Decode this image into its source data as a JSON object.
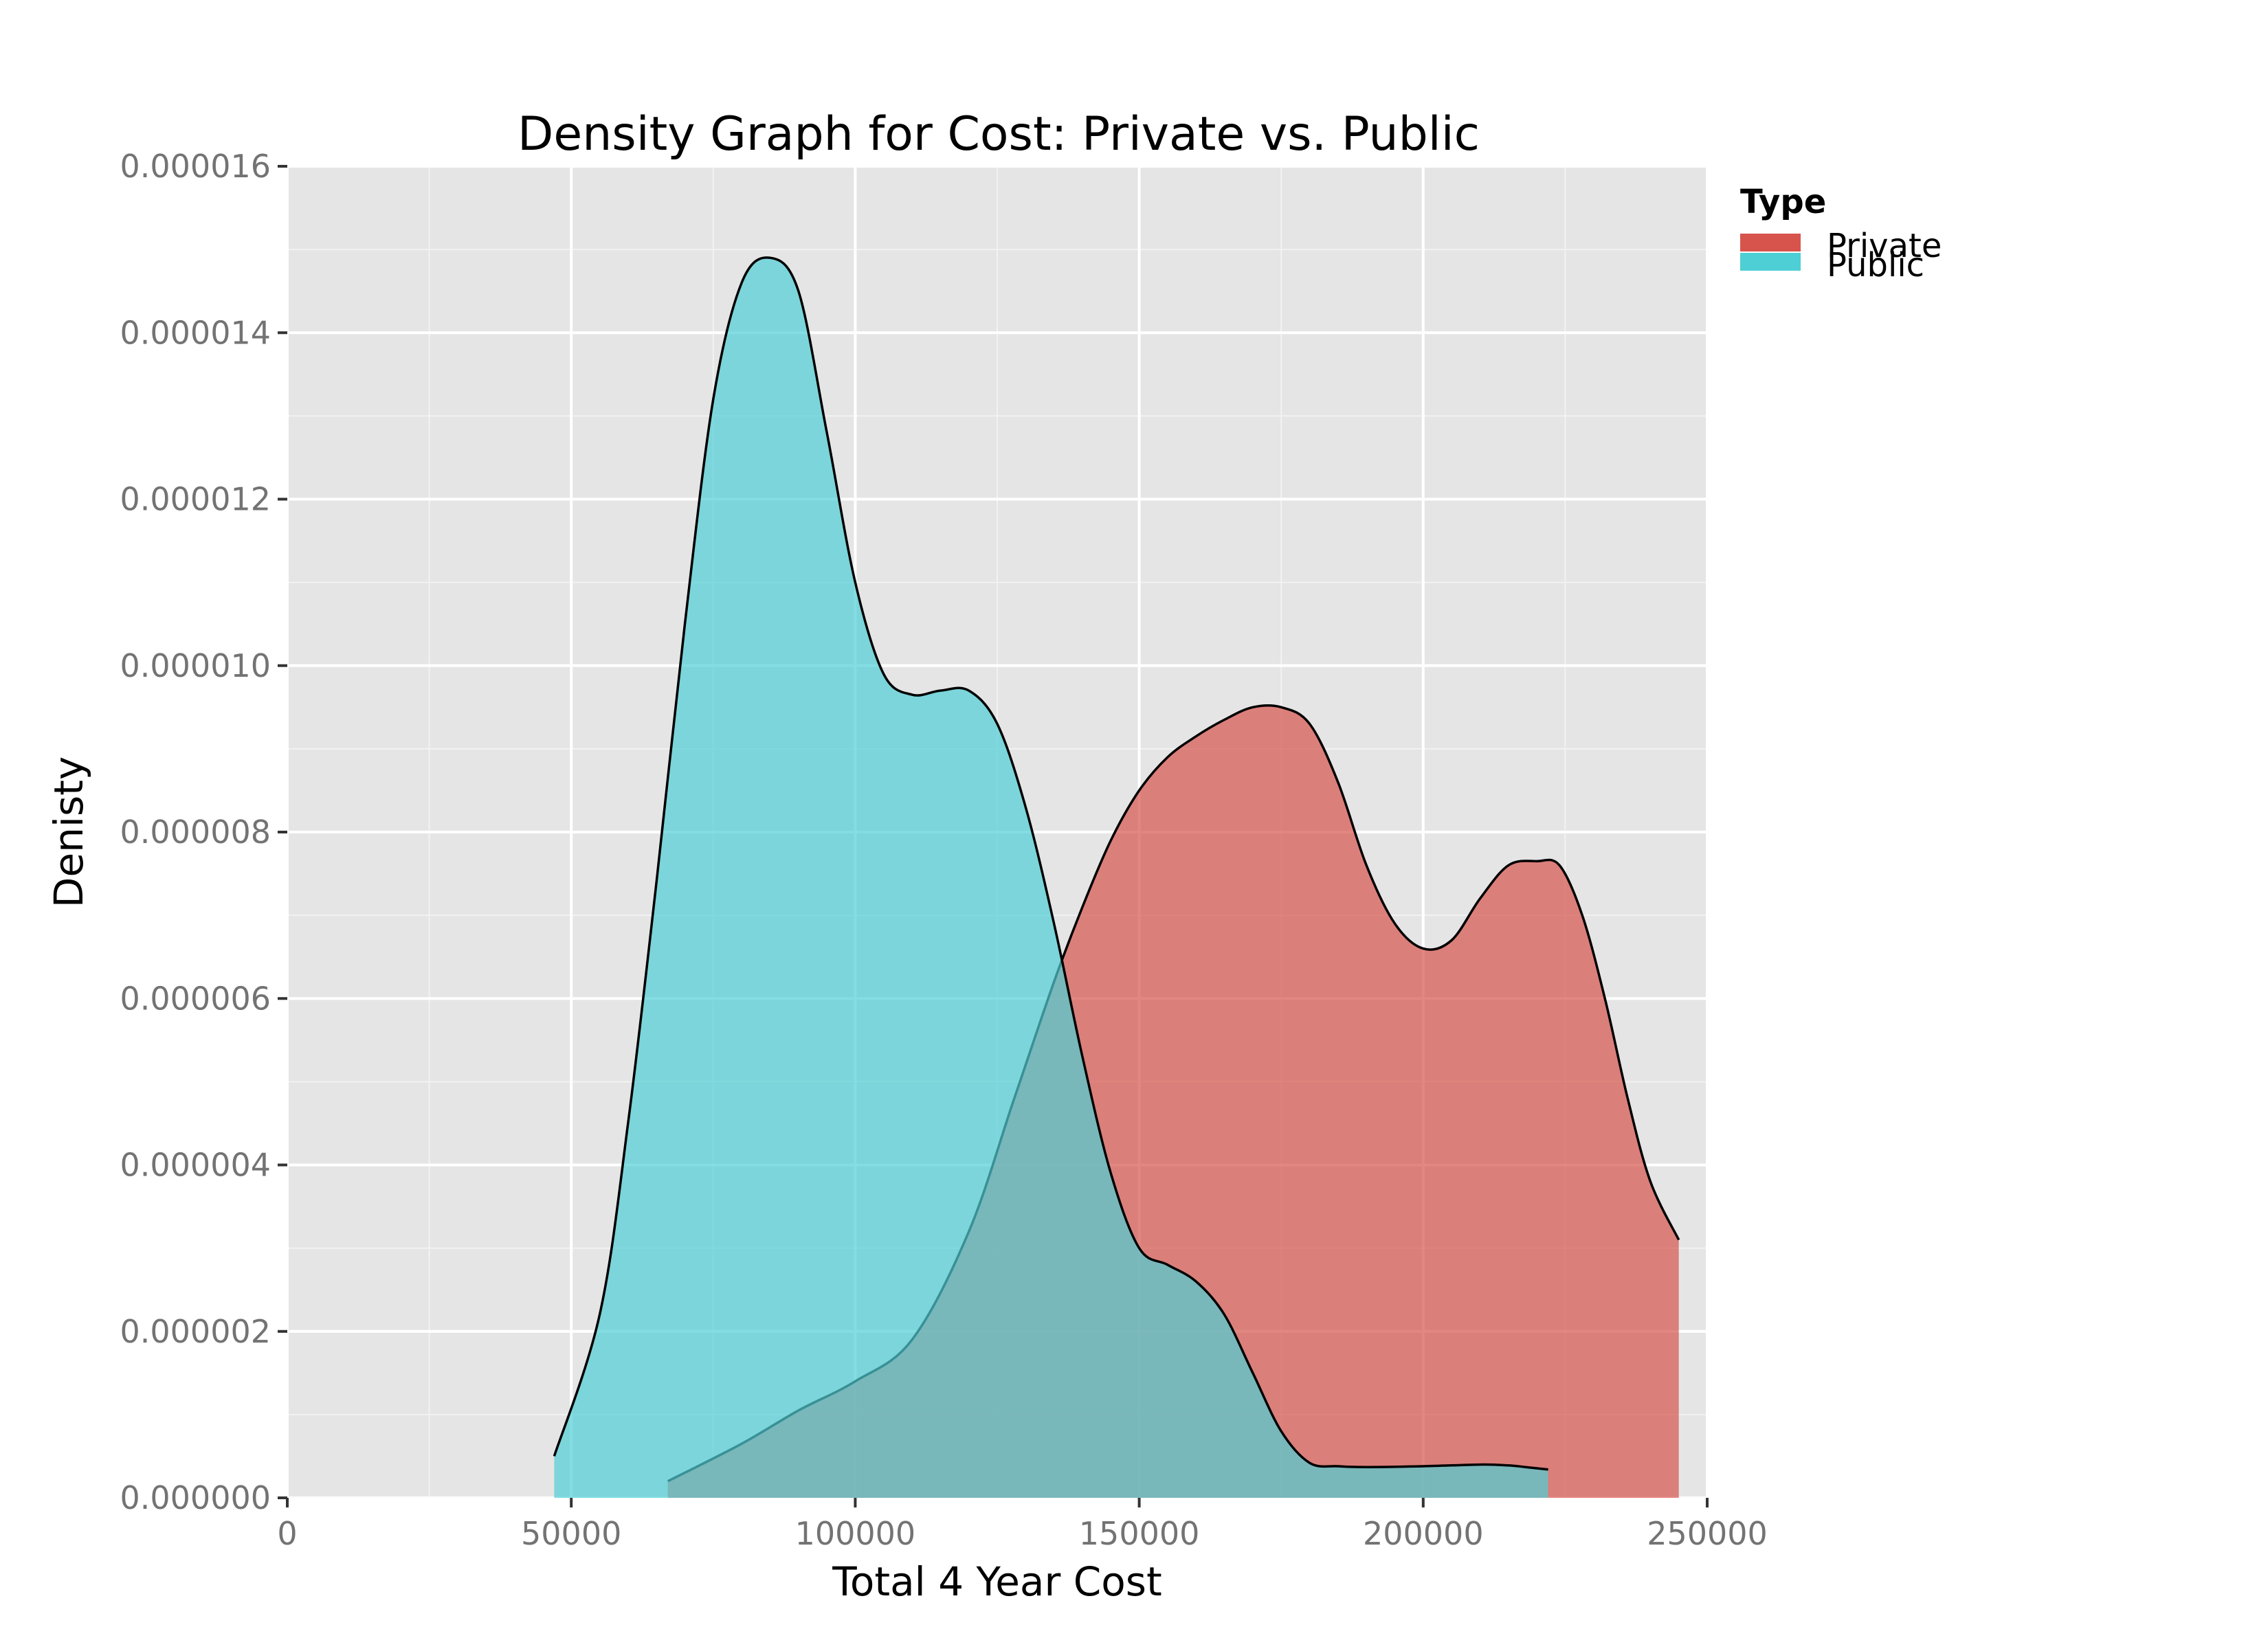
{
  "chart_data": {
    "type": "area",
    "subtype": "density",
    "title": "Density Graph for Cost: Private vs. Public",
    "xlabel": "Total 4 Year Cost",
    "ylabel": "Denisty",
    "xlim": [
      0,
      250000
    ],
    "ylim": [
      0,
      1.6e-05
    ],
    "x_ticks": [
      0,
      50000,
      100000,
      150000,
      200000,
      250000
    ],
    "x_tick_labels": [
      "0",
      "50000",
      "100000",
      "150000",
      "200000",
      "250000"
    ],
    "y_ticks": [
      0,
      2e-06,
      4e-06,
      6e-06,
      8e-06,
      1e-05,
      1.2e-05,
      1.4e-05,
      1.6e-05
    ],
    "y_tick_labels": [
      "0.000000",
      "0.000002",
      "0.000004",
      "0.000006",
      "0.000008",
      "0.000010",
      "0.000012",
      "0.000014",
      "0.000016"
    ],
    "grid": true,
    "legend": {
      "title": "Type",
      "position": "right"
    },
    "series": [
      {
        "name": "Private",
        "color": "#D7544D",
        "x": [
          67000,
          80000,
          90000,
          100000,
          110000,
          120000,
          128000,
          135000,
          140000,
          145000,
          150000,
          155000,
          160000,
          165000,
          170000,
          175000,
          180000,
          185000,
          190000,
          195000,
          200000,
          205000,
          210000,
          215000,
          220000,
          224000,
          228000,
          232000,
          236000,
          240000,
          245000
        ],
        "y": [
          2e-07,
          6.5e-07,
          1.05e-06,
          1.4e-06,
          1.9e-06,
          3.2e-06,
          4.8e-06,
          6.2e-06,
          7.1e-06,
          7.9e-06,
          8.5e-06,
          8.9e-06,
          9.15e-06,
          9.35e-06,
          9.5e-06,
          9.5e-06,
          9.3e-06,
          8.6e-06,
          7.6e-06,
          6.9e-06,
          6.6e-06,
          6.7e-06,
          7.2e-06,
          7.6e-06,
          7.65e-06,
          7.6e-06,
          7e-06,
          6e-06,
          4.8e-06,
          3.8e-06,
          3.1e-06
        ]
      },
      {
        "name": "Public",
        "color": "#4ECFD5",
        "x": [
          47000,
          55000,
          60000,
          65000,
          70000,
          75000,
          80000,
          85000,
          90000,
          95000,
          100000,
          105000,
          110000,
          115000,
          120000,
          125000,
          130000,
          135000,
          140000,
          145000,
          150000,
          155000,
          160000,
          165000,
          170000,
          175000,
          180000,
          185000,
          190000,
          200000,
          210000,
          215000,
          218000,
          222000
        ],
        "y": [
          5e-07,
          2.2e-06,
          4.5e-06,
          7.4e-06,
          1.05e-05,
          1.32e-05,
          1.46e-05,
          1.49e-05,
          1.45e-05,
          1.28e-05,
          1.1e-05,
          9.9e-06,
          9.65e-06,
          9.7e-06,
          9.7e-06,
          9.3e-06,
          8.3e-06,
          6.9e-06,
          5.3e-06,
          3.9e-06,
          3e-06,
          2.8e-06,
          2.6e-06,
          2.2e-06,
          1.5e-06,
          8e-07,
          4.2e-07,
          3.8e-07,
          3.7e-07,
          3.8e-07,
          4e-07,
          3.9e-07,
          3.7e-07,
          3.4e-07
        ]
      }
    ]
  }
}
